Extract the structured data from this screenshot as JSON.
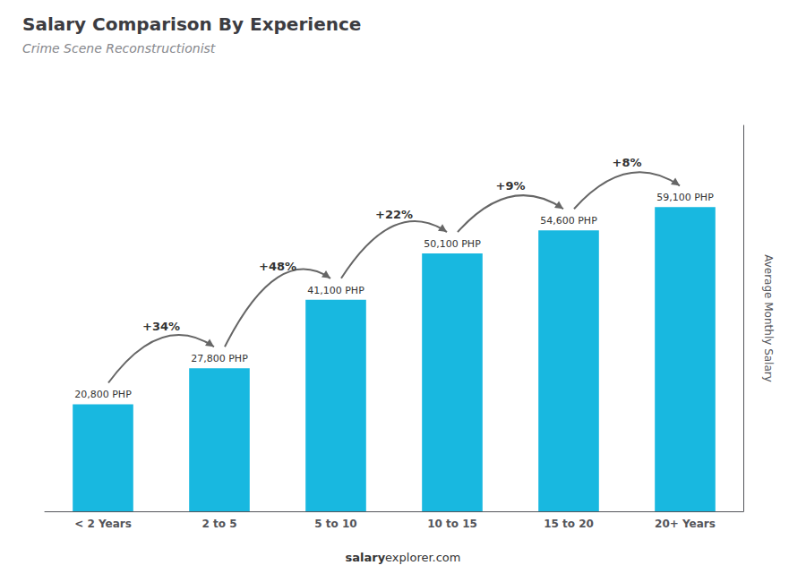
{
  "chart_data": {
    "type": "bar",
    "title": "Salary Comparison By Experience",
    "subtitle": "Crime Scene Reconstructionist",
    "categories": [
      "< 2 Years",
      "2 to 5",
      "5 to 10",
      "10 to 15",
      "15 to 20",
      "20+ Years"
    ],
    "values": [
      20800,
      27800,
      41100,
      50100,
      54600,
      59100
    ],
    "value_labels": [
      "20,800 PHP",
      "27,800 PHP",
      "41,100 PHP",
      "50,100 PHP",
      "54,600 PHP",
      "59,100 PHP"
    ],
    "data_labels": true,
    "color": "#18b8e0",
    "ylabel": "Average Monthly Salary",
    "ylim": [
      0,
      75000
    ],
    "tick_labels": "x",
    "grid": false,
    "annotations": [
      "+34%",
      "+48%",
      "+22%",
      "+9%",
      "+8%"
    ],
    "footer": [
      "salary",
      "explorer.com"
    ]
  }
}
